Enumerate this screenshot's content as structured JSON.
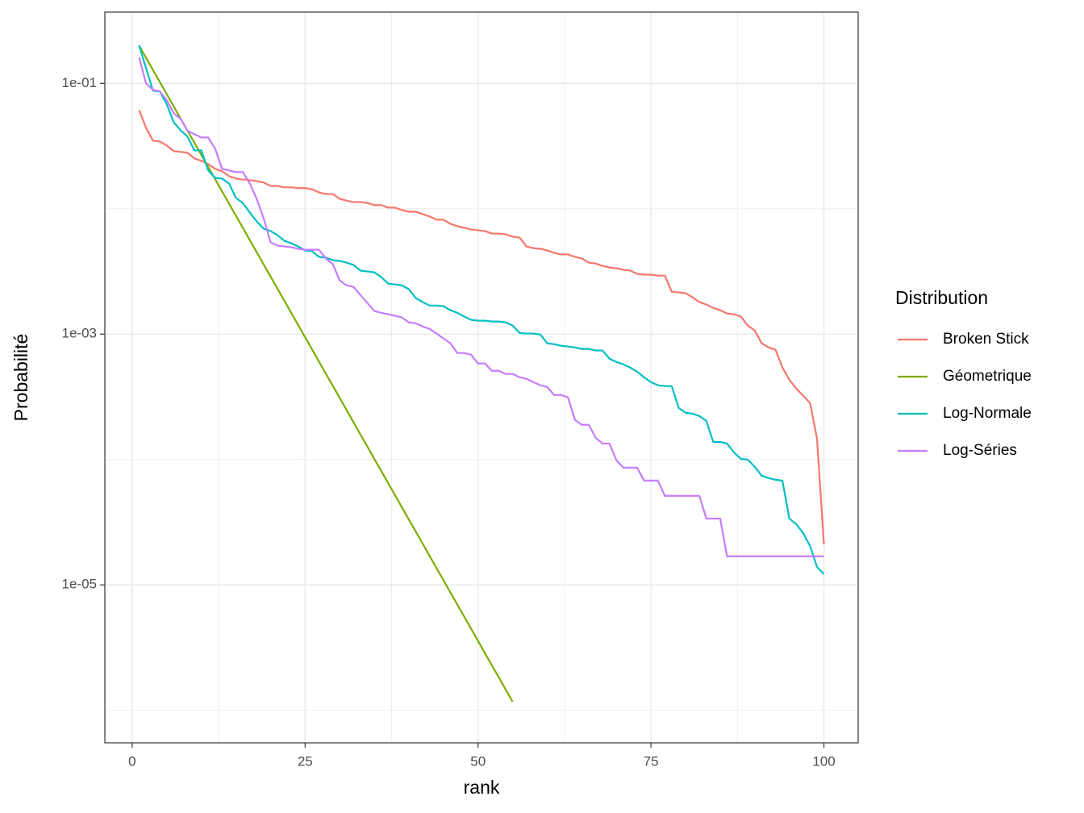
{
  "chart_data": {
    "type": "line",
    "x_label": "rank",
    "y_label": "Probabilité",
    "legend_title": "Distribution",
    "legend": "right",
    "ylog": true,
    "grid": true,
    "xlim": [
      -3.95,
      104.95
    ],
    "xticks": [
      0,
      25,
      50,
      75,
      100
    ],
    "xminor": [
      12.5,
      37.5,
      62.5,
      87.5
    ],
    "ylim": [
      5.5e-07,
      0.37
    ],
    "yticks": [
      {
        "value": 0.1,
        "label": "1e-01"
      },
      {
        "value": 0.001,
        "label": "1e-03"
      },
      {
        "value": 1e-05,
        "label": "1e-05"
      }
    ],
    "yminor": [
      0.01,
      0.0001,
      1e-06
    ],
    "x": [
      1,
      2,
      3,
      4,
      5,
      6,
      7,
      8,
      9,
      10,
      11,
      12,
      13,
      14,
      15,
      16,
      17,
      18,
      19,
      20,
      21,
      22,
      23,
      24,
      25,
      26,
      27,
      28,
      29,
      30,
      31,
      32,
      33,
      34,
      35,
      36,
      37,
      38,
      39,
      40,
      41,
      42,
      43,
      44,
      45,
      46,
      47,
      48,
      49,
      50,
      51,
      52,
      53,
      54,
      55,
      56,
      57,
      58,
      59,
      60,
      61,
      62,
      63,
      64,
      65,
      66,
      67,
      68,
      69,
      70,
      71,
      72,
      73,
      74,
      75,
      76,
      77,
      78,
      79,
      80,
      81,
      82,
      83,
      84,
      85,
      86,
      87,
      88,
      89,
      90,
      91,
      92,
      93,
      94,
      95,
      96,
      97,
      98,
      99,
      100
    ],
    "series": [
      {
        "name": "Broken Stick",
        "color": "#F8766D",
        "values": [
          0.0613,
          0.0443,
          0.0349,
          0.0344,
          0.0319,
          0.0288,
          0.0284,
          0.0279,
          0.0252,
          0.0241,
          0.0227,
          0.0208,
          0.0199,
          0.0182,
          0.0174,
          0.0171,
          0.0169,
          0.0166,
          0.0162,
          0.0152,
          0.0152,
          0.0148,
          0.0148,
          0.0146,
          0.0146,
          0.0143,
          0.0135,
          0.0131,
          0.0131,
          0.012,
          0.0116,
          0.0113,
          0.0113,
          0.0111,
          0.0107,
          0.0107,
          0.0102,
          0.0102,
          0.00975,
          0.00946,
          0.00946,
          0.00906,
          0.00867,
          0.00817,
          0.00817,
          0.00758,
          0.00725,
          0.00704,
          0.00684,
          0.00673,
          0.00664,
          0.00634,
          0.00634,
          0.00625,
          0.00598,
          0.00589,
          0.005,
          0.00485,
          0.00479,
          0.00465,
          0.00445,
          0.00432,
          0.00432,
          0.00413,
          0.00401,
          0.00372,
          0.00366,
          0.0035,
          0.0034,
          0.00335,
          0.00326,
          0.00321,
          0.00302,
          0.00298,
          0.00298,
          0.00293,
          0.00293,
          0.00218,
          0.00215,
          0.00212,
          0.00197,
          0.0018,
          0.00172,
          0.00162,
          0.00155,
          0.00146,
          0.00144,
          0.00138,
          0.00117,
          0.00107,
          0.000845,
          0.000784,
          0.00075,
          0.000541,
          0.000433,
          0.000368,
          0.000322,
          0.000282,
          0.000147,
          2.1e-05
        ]
      },
      {
        "name": "Géometrique",
        "color": "#7CAE00",
        "values": [
          0.2,
          0.16,
          0.128,
          0.1024,
          0.08192,
          0.065536,
          0.0524288,
          0.041943,
          0.033554,
          0.026844,
          0.021475,
          0.01718,
          0.013744,
          0.010995,
          0.008796,
          0.007037,
          0.00563,
          0.004504,
          0.003603,
          0.002882,
          0.002306,
          0.001845,
          0.001476,
          0.001181,
          0.000944,
          0.000756,
          0.000604,
          0.000484,
          0.000387,
          0.00031,
          0.000248,
          0.000198,
          0.000158,
          0.000127,
          0.000101,
          8.11e-05,
          6.49e-05,
          5.19e-05,
          4.15e-05,
          3.32e-05,
          2.66e-05,
          2.13e-05,
          1.7e-05,
          1.36e-05,
          1.09e-05,
          8.71e-06,
          6.97e-06,
          5.58e-06,
          4.46e-06,
          3.57e-06,
          2.85e-06,
          2.28e-06,
          1.83e-06,
          1.46e-06,
          1.17e-06,
          null,
          null,
          null,
          null,
          null,
          null,
          null,
          null,
          null,
          null,
          null,
          null,
          null,
          null,
          null,
          null,
          null,
          null,
          null,
          null,
          null,
          null,
          null,
          null,
          null,
          null,
          null,
          null,
          null,
          null,
          null,
          null,
          null,
          null,
          null,
          null,
          null,
          null,
          null,
          null,
          null,
          null,
          null,
          null,
          null
        ]
      },
      {
        "name": "Log-Normale",
        "color": "#00BFC4",
        "values": [
          0.201,
          0.1325,
          0.0875,
          0.0862,
          0.068,
          0.0491,
          0.0423,
          0.0376,
          0.0292,
          0.0292,
          0.0202,
          0.0176,
          0.0174,
          0.0159,
          0.0122,
          0.0111,
          0.00933,
          0.00793,
          0.00693,
          0.00664,
          0.00616,
          0.00555,
          0.00531,
          0.005,
          0.00465,
          0.00458,
          0.00413,
          0.00407,
          0.00389,
          0.00383,
          0.00372,
          0.00356,
          0.00321,
          0.00316,
          0.00311,
          0.00285,
          0.00253,
          0.00249,
          0.00245,
          0.00228,
          0.00194,
          0.0018,
          0.00169,
          0.00169,
          0.00167,
          0.00155,
          0.00148,
          0.00138,
          0.0013,
          0.00128,
          0.00128,
          0.00126,
          0.00126,
          0.00124,
          0.00117,
          0.00102,
          0.00101,
          0.00101,
          0.000994,
          0.000845,
          0.000832,
          0.000808,
          0.000796,
          0.000784,
          0.000762,
          0.000762,
          0.00074,
          0.00074,
          0.000637,
          0.0006,
          0.000574,
          0.000541,
          0.000502,
          0.000453,
          0.000414,
          0.000391,
          0.000385,
          0.000385,
          0.000258,
          0.000236,
          0.000232,
          0.000222,
          0.000203,
          0.000138,
          0.000138,
          0.000134,
          0.000114,
          0.000101,
          9.98e-05,
          8.73e-05,
          7.43e-05,
          7.1e-05,
          6.89e-05,
          6.79e-05,
          3.38e-05,
          3.05e-05,
          2.59e-05,
          2.04e-05,
          1.39e-05,
          1.22e-05
        ]
      },
      {
        "name": "Log-Séries",
        "color": "#C77CFF",
        "values": [
          0.161,
          0.1,
          0.0888,
          0.0862,
          0.0733,
          0.0578,
          0.0521,
          0.0417,
          0.0393,
          0.037,
          0.037,
          0.0301,
          0.0208,
          0.0202,
          0.0196,
          0.0196,
          0.0159,
          0.012,
          0.00841,
          0.00539,
          0.00508,
          0.005,
          0.00493,
          0.00479,
          0.00471,
          0.00471,
          0.00471,
          0.00401,
          0.00361,
          0.00268,
          0.00245,
          0.00238,
          0.00205,
          0.00177,
          0.00153,
          0.00148,
          0.00144,
          0.0014,
          0.00136,
          0.00124,
          0.00122,
          0.00115,
          0.0011,
          0.00101,
          0.000923,
          0.000845,
          0.000707,
          0.000707,
          0.000686,
          0.000583,
          0.000583,
          0.00051,
          0.00051,
          0.000481,
          0.000481,
          0.000453,
          0.00044,
          0.000414,
          0.000391,
          0.000379,
          0.000327,
          0.000327,
          0.000313,
          0.000207,
          0.000189,
          0.000189,
          0.000149,
          0.000134,
          0.000134,
          9.84e-05,
          8.61e-05,
          8.61e-05,
          8.61e-05,
          6.79e-05,
          6.79e-05,
          6.79e-05,
          5.13e-05,
          5.13e-05,
          5.13e-05,
          5.13e-05,
          5.13e-05,
          5.13e-05,
          3.38e-05,
          3.38e-05,
          3.38e-05,
          1.69e-05,
          1.69e-05,
          1.69e-05,
          1.69e-05,
          1.69e-05,
          1.69e-05,
          1.69e-05,
          1.69e-05,
          1.69e-05,
          1.69e-05,
          1.69e-05,
          1.69e-05,
          1.69e-05,
          1.69e-05,
          1.69e-05
        ]
      }
    ]
  }
}
